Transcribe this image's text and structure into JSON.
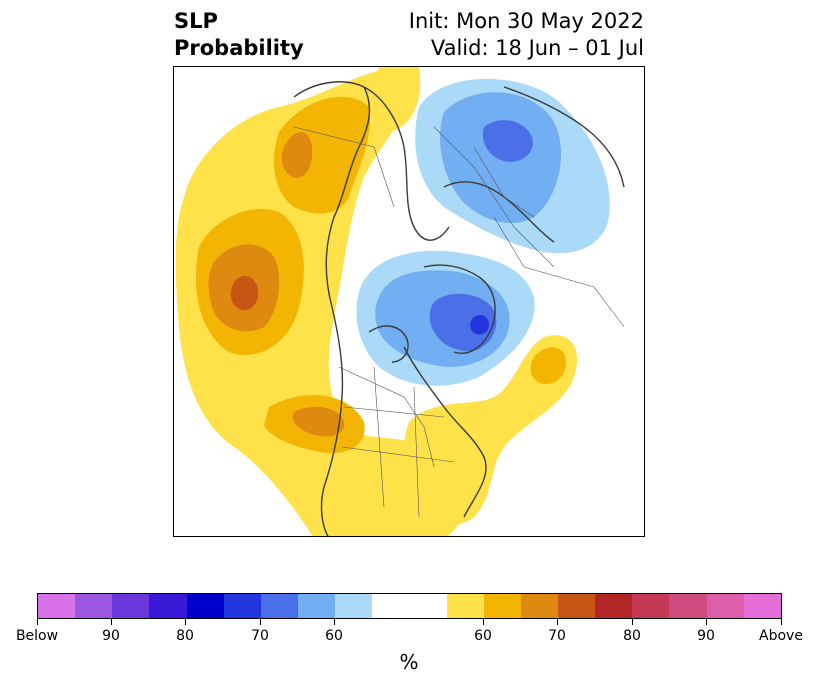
{
  "header": {
    "variable": "SLP",
    "kind": "Probability",
    "init": "Init: Mon 30 May 2022",
    "valid": "Valid: 18 Jun – 01 Jul"
  },
  "colorbar": {
    "colors": [
      "#d872e8",
      "#9b56e2",
      "#6c38db",
      "#3a1ad6",
      "#0000cc",
      "#2335dc",
      "#4a6fe6",
      "#72aef2",
      "#aadaf8",
      "#ffffff",
      "#ffffff",
      "#ffe14a",
      "#f3b503",
      "#de8a10",
      "#c75516",
      "#b32626",
      "#c43a55",
      "#d04c7f",
      "#dd5fab",
      "#e66ed8"
    ],
    "labels": [
      "Below",
      "90",
      "80",
      "70",
      "60",
      "60",
      "70",
      "80",
      "90",
      "Above"
    ],
    "unit": "%"
  },
  "colors": {
    "above_60": "#ffe14a",
    "above_65": "#f3b503",
    "above_70": "#de8a10",
    "above_75": "#c75516",
    "below_60": "#aadaf8",
    "below_65": "#72aef2",
    "below_70": "#4a6fe6",
    "below_75": "#2335dc",
    "coast": "#3a3a3a"
  }
}
